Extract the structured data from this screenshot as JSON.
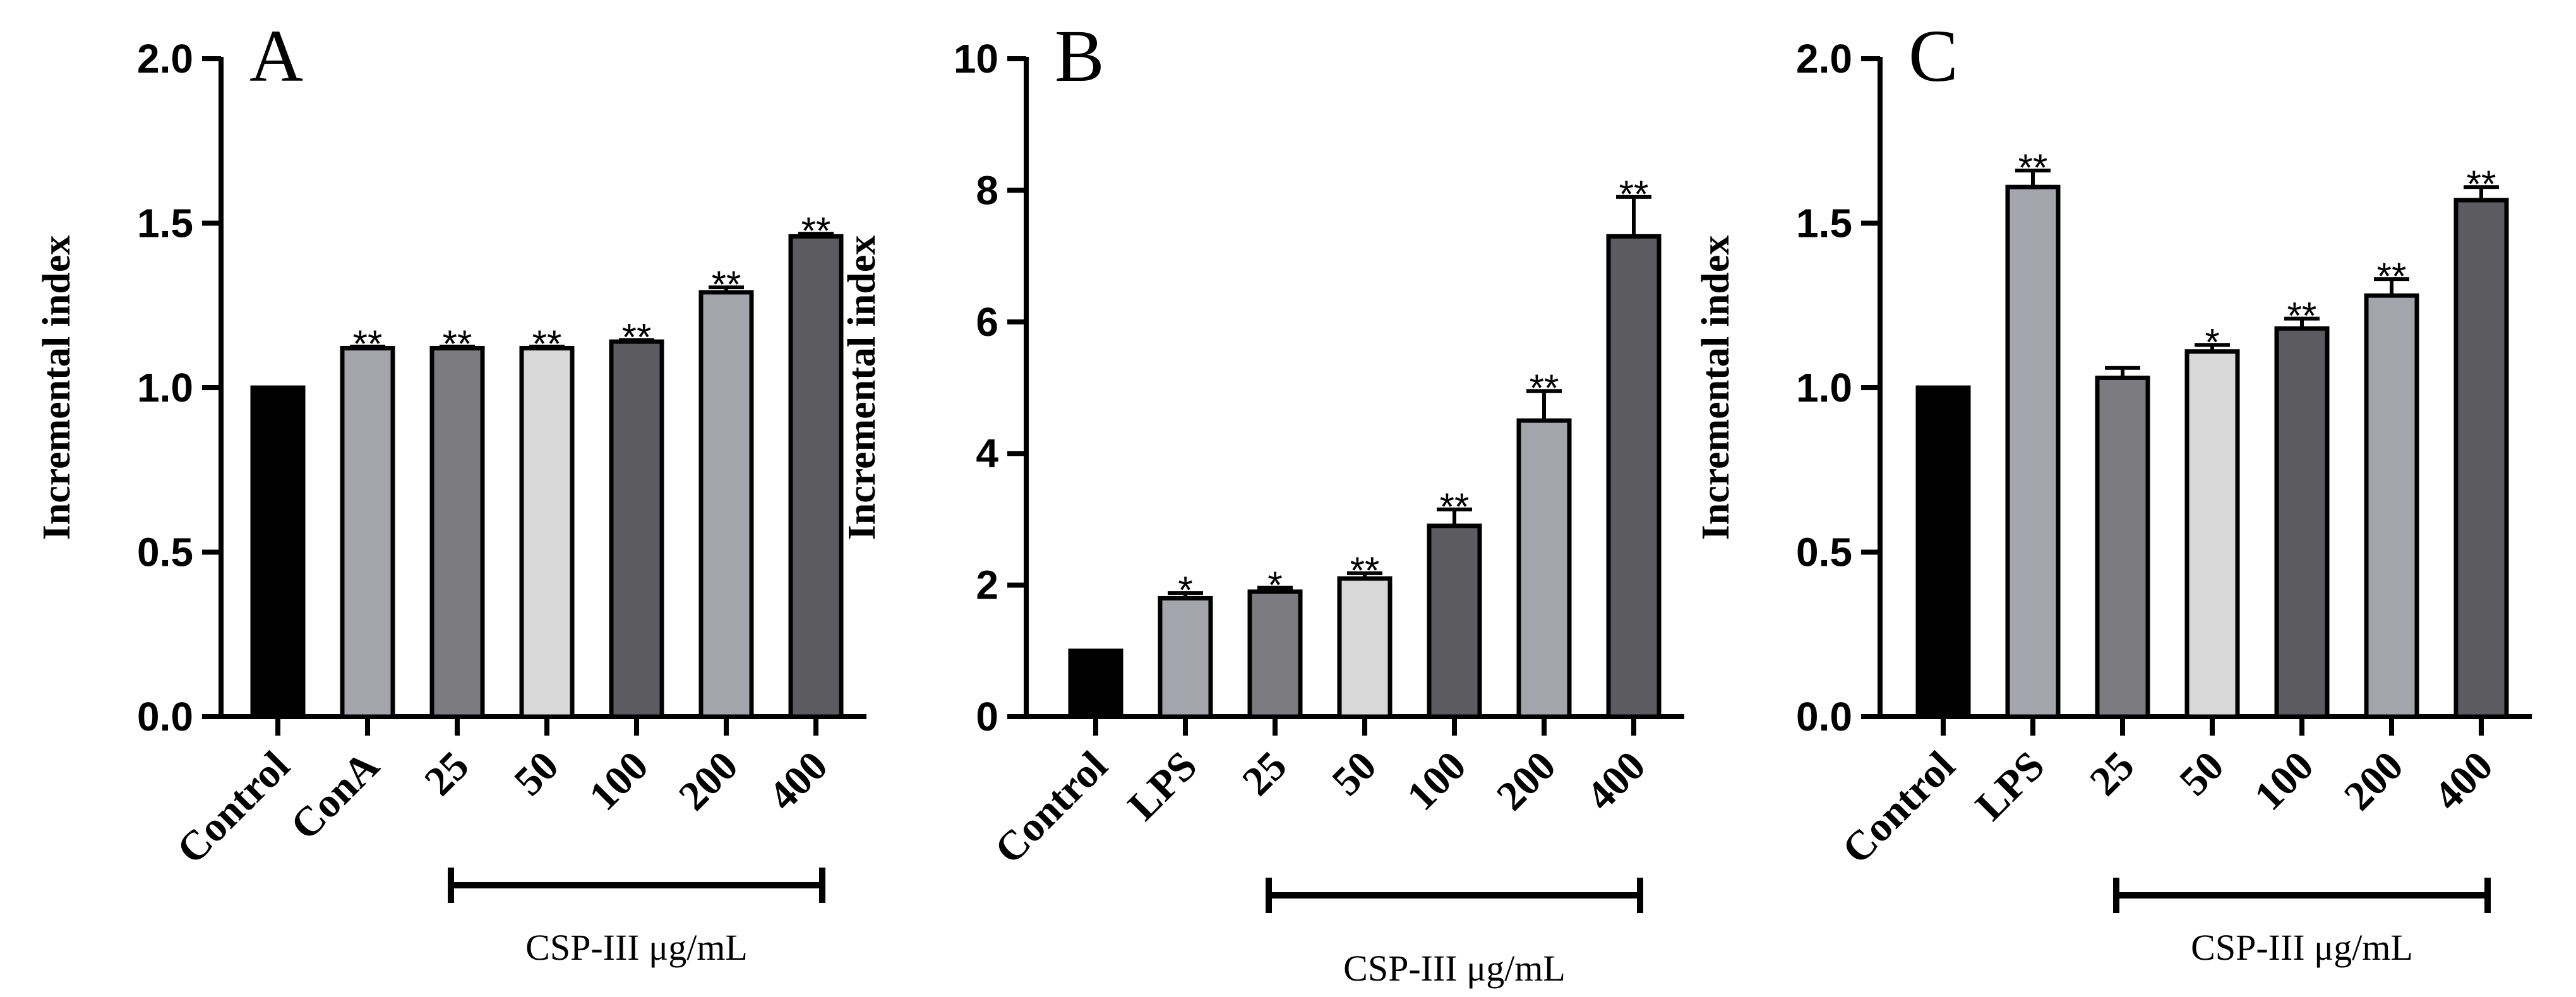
{
  "chart_data": [
    {
      "type": "bar",
      "panel_label": "A",
      "ylabel": "Incremental index",
      "ylim": [
        0,
        2.0
      ],
      "yticks": [
        "0.0",
        "0.5",
        "1.0",
        "1.5",
        "2.0"
      ],
      "ytick_values": [
        0,
        0.5,
        1.0,
        1.5,
        2.0
      ],
      "categories": [
        "Control",
        "ConA",
        "25",
        "50",
        "100",
        "200",
        "400"
      ],
      "values": [
        1.0,
        1.12,
        1.12,
        1.12,
        1.14,
        1.29,
        1.46
      ],
      "errors": [
        0,
        0.005,
        0.005,
        0.005,
        0.005,
        0.015,
        0.008
      ],
      "significance": [
        "",
        "**",
        "**",
        "**",
        "**",
        "**",
        "**"
      ],
      "bar_colors": [
        "#000000",
        "#a4a4ac",
        "#7c7c80",
        "#d8d8d8",
        "#5c5c60",
        "#a4a4ac",
        "#5c5c60"
      ],
      "bracket_label": "CSP-III μg/mL",
      "bracket_from": 2,
      "bracket_to": 6
    },
    {
      "type": "bar",
      "panel_label": "B",
      "ylabel": "Incremental index",
      "ylim": [
        0,
        10
      ],
      "yticks": [
        "0",
        "2",
        "4",
        "6",
        "8",
        "10"
      ],
      "ytick_values": [
        0,
        2,
        4,
        6,
        8,
        10
      ],
      "categories": [
        "Control",
        "LPS",
        "25",
        "50",
        "100",
        "200",
        "400"
      ],
      "values": [
        1.0,
        1.8,
        1.9,
        2.1,
        2.9,
        4.5,
        7.3
      ],
      "errors": [
        0,
        0.08,
        0.06,
        0.08,
        0.25,
        0.45,
        0.6
      ],
      "significance": [
        "",
        "*",
        "*",
        "**",
        "**",
        "**",
        "**"
      ],
      "bar_colors": [
        "#000000",
        "#a4a4ac",
        "#7c7c80",
        "#d8d8d8",
        "#5c5c60",
        "#a4a4ac",
        "#5c5c60"
      ],
      "bracket_label": "CSP-III μg/mL",
      "bracket_from": 2,
      "bracket_to": 6
    },
    {
      "type": "bar",
      "panel_label": "C",
      "ylabel": "Incremental index",
      "ylim": [
        0,
        2.0
      ],
      "yticks": [
        "0.0",
        "0.5",
        "1.0",
        "1.5",
        "2.0"
      ],
      "ytick_values": [
        0,
        0.5,
        1.0,
        1.5,
        2.0
      ],
      "categories": [
        "Control",
        "LPS",
        "25",
        "50",
        "100",
        "200",
        "400"
      ],
      "values": [
        1.0,
        1.61,
        1.03,
        1.11,
        1.18,
        1.28,
        1.57
      ],
      "errors": [
        0,
        0.05,
        0.03,
        0.02,
        0.03,
        0.05,
        0.04
      ],
      "significance": [
        "",
        "**",
        "",
        "*",
        "**",
        "**",
        "**"
      ],
      "bar_colors": [
        "#000000",
        "#a4a4ac",
        "#7c7c80",
        "#d8d8d8",
        "#5c5c60",
        "#a4a4ac",
        "#5c5c60"
      ],
      "bracket_label": "CSP-III μg/mL",
      "bracket_from": 2,
      "bracket_to": 6
    }
  ]
}
